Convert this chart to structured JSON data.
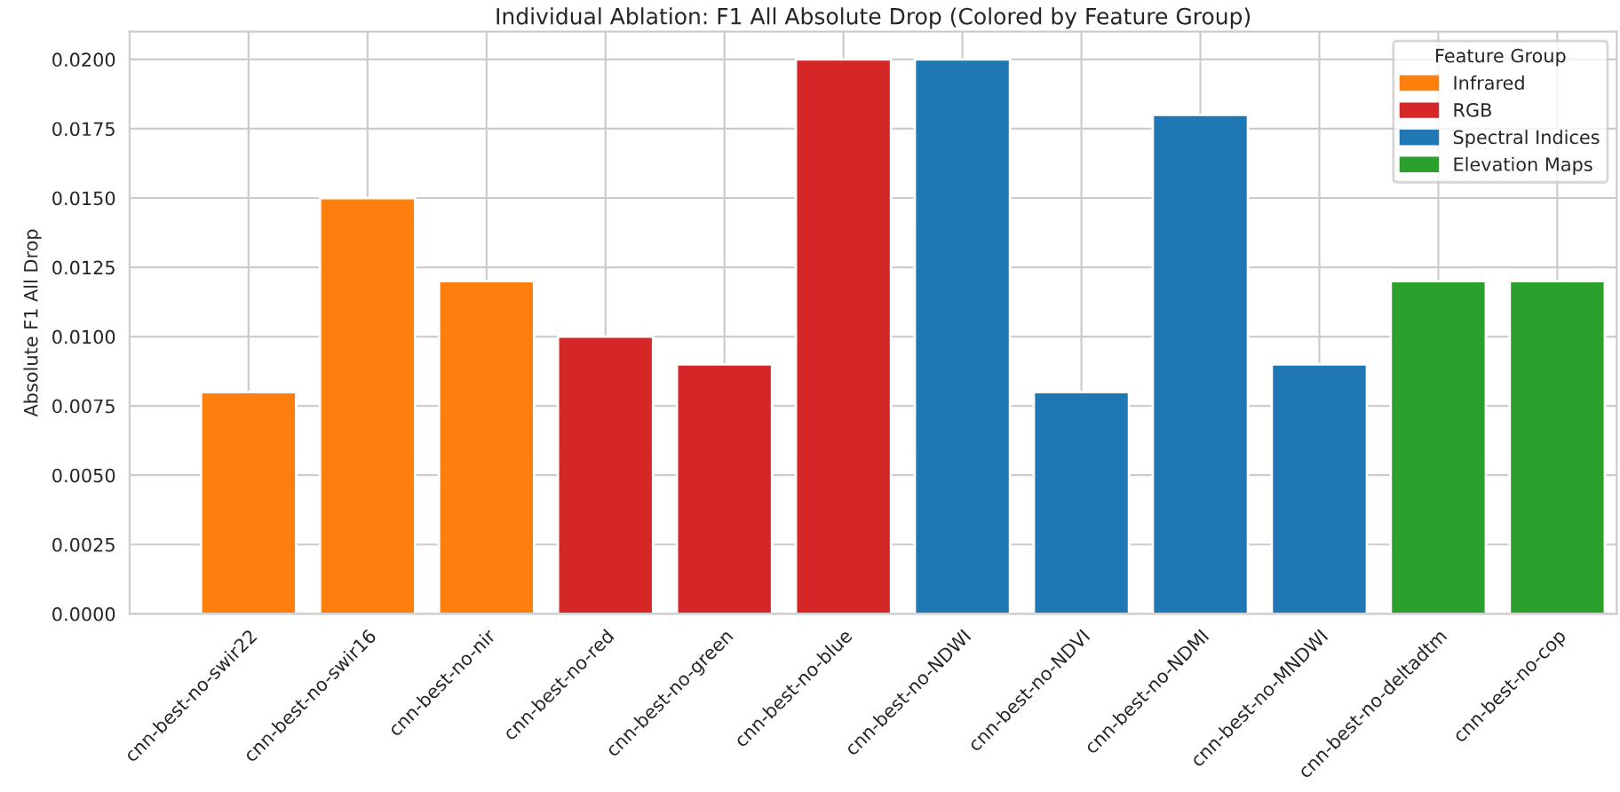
{
  "chart_data": {
    "type": "bar",
    "title": "Individual Ablation: F1 All Absolute Drop (Colored by Feature Group)",
    "ylabel": "Absolute F1 All Drop",
    "legend_title": "Feature Group",
    "legend": "top right",
    "grid": true,
    "categories": [
      "cnn-best-no-swir22",
      "cnn-best-no-swir16",
      "cnn-best-no-nir",
      "cnn-best-no-red",
      "cnn-best-no-green",
      "cnn-best-no-blue",
      "cnn-best-no-NDWI",
      "cnn-best-no-NDVI",
      "cnn-best-no-NDMI",
      "cnn-best-no-MNDWI",
      "cnn-best-no-deltadtm",
      "cnn-best-no-cop"
    ],
    "series": [
      {
        "name": "Infrared",
        "color": "#ff7f0e",
        "values": [
          0.008,
          0.015,
          0.012,
          null,
          null,
          null,
          null,
          null,
          null,
          null,
          null,
          null
        ]
      },
      {
        "name": "RGB",
        "color": "#d62728",
        "values": [
          null,
          null,
          null,
          0.01,
          0.009,
          0.02,
          null,
          null,
          null,
          null,
          null,
          null
        ]
      },
      {
        "name": "Spectral Indices",
        "color": "#1f77b4",
        "values": [
          null,
          null,
          null,
          null,
          null,
          null,
          0.02,
          0.008,
          0.018,
          0.009,
          null,
          null
        ]
      },
      {
        "name": "Elevation Maps",
        "color": "#2ca02c",
        "values": [
          null,
          null,
          null,
          null,
          null,
          null,
          null,
          null,
          null,
          null,
          0.012,
          0.012
        ]
      }
    ],
    "ylim": [
      0,
      0.021
    ],
    "yticks": [
      {
        "value": 0,
        "label": "0.0000"
      },
      {
        "value": 0.0025,
        "label": "0.0025"
      },
      {
        "value": 0.005,
        "label": "0.0050"
      },
      {
        "value": 0.0075,
        "label": "0.0075"
      },
      {
        "value": 0.01,
        "label": "0.0100"
      },
      {
        "value": 0.0125,
        "label": "0.0125"
      },
      {
        "value": 0.015,
        "label": "0.0150"
      },
      {
        "value": 0.0175,
        "label": "0.0175"
      },
      {
        "value": 0.02,
        "label": "0.0200"
      }
    ]
  }
}
